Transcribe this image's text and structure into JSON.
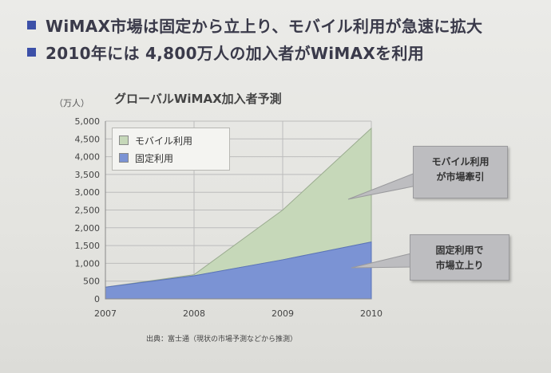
{
  "bullets": [
    "WiMAX市場は固定から立上り、モバイル利用が急速に拡大",
    "2010年には 4,800万人の加入者がWiMAXを利用"
  ],
  "colors": {
    "bullet": "#3c50a8",
    "mobile": "#c6d8b9",
    "fixed": "#7b93d4",
    "grid": "#bcbcbc"
  },
  "chart_data": {
    "type": "area",
    "stacked": true,
    "title": "グローバルWiMAX加入者予測",
    "ylabel": "（万人）",
    "x": [
      "2007",
      "2008",
      "2009",
      "2010"
    ],
    "ylim": [
      0,
      5000
    ],
    "yticks": [
      "0",
      "500",
      "1,000",
      "1,500",
      "2,000",
      "2,500",
      "3,000",
      "3,500",
      "4,000",
      "4,500",
      "5,000"
    ],
    "series": [
      {
        "name": "固定利用",
        "values": [
          330,
          650,
          1100,
          1600
        ]
      },
      {
        "name": "モバイル利用",
        "values": [
          0,
          30,
          1400,
          3200
        ]
      }
    ],
    "legend": "top-left",
    "grid": true
  },
  "callouts": {
    "mobile": [
      "モバイル利用",
      "が市場牽引"
    ],
    "fixed": [
      "固定利用で",
      "市場立上り"
    ]
  },
  "source": "出典：富士通（現状の市場予測などから推測）"
}
